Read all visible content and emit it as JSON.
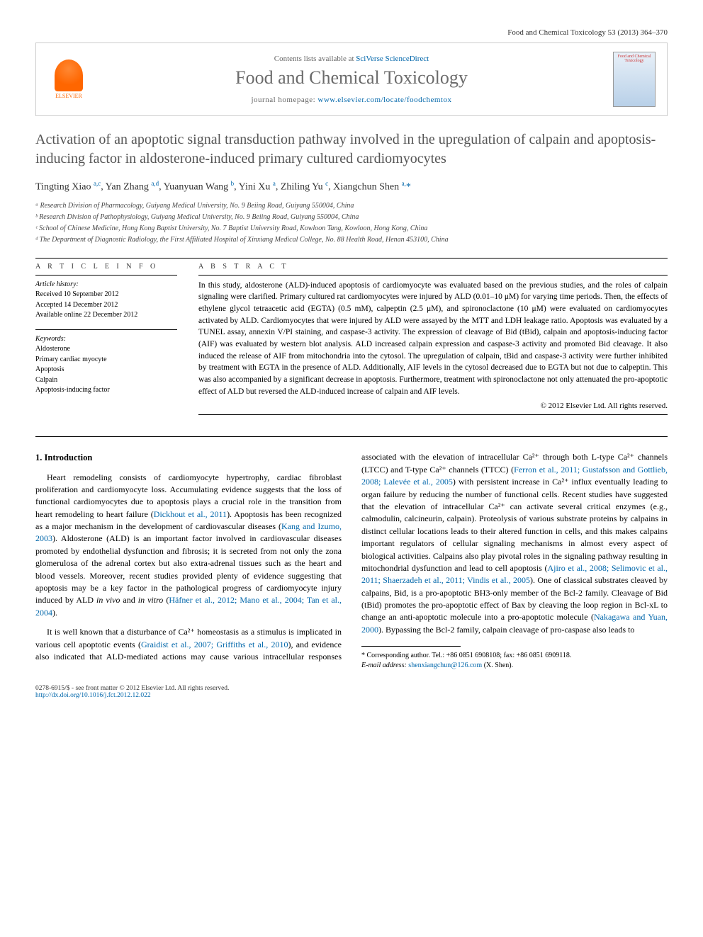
{
  "header": {
    "citation": "Food and Chemical Toxicology 53 (2013) 364–370"
  },
  "banner": {
    "elsevier_label": "ELSEVIER",
    "contents_prefix": "Contents lists available at ",
    "contents_link": "SciVerse ScienceDirect",
    "journal_name": "Food and Chemical Toxicology",
    "homepage_prefix": "journal homepage: ",
    "homepage_url": "www.elsevier.com/locate/foodchemtox",
    "cover_text": "Food and Chemical Toxicology"
  },
  "title": "Activation of an apoptotic signal transduction pathway involved in the upregulation of calpain and apoptosis-inducing factor in aldosterone-induced primary cultured cardiomyocytes",
  "authors_html": "Tingting Xiao <sup>a,c</sup>, Yan Zhang <sup>a,d</sup>, Yuanyuan Wang <sup>b</sup>, Yini Xu <sup>a</sup>, Zhiling Yu <sup>c</sup>, Xiangchun Shen <sup>a,</sup><span class='star'>*</span>",
  "affiliations": [
    "ᵃ Research Division of Pharmacology, Guiyang Medical University, No. 9 Beiing Road, Guiyang 550004, China",
    "ᵇ Research Division of Pathophysiology, Guiyang Medical University, No. 9 Beiing Road, Guiyang 550004, China",
    "ᶜ School of Chinese Medicine, Hong Kong Baptist University, No. 7 Baptist University Road, Kowloon Tang, Kowloon, Hong Kong, China",
    "ᵈ The Department of Diagnostic Radiology, the First Affiliated Hospital of Xinxiang Medical College, No. 88 Health Road, Henan 453100, China"
  ],
  "info": {
    "heading": "A R T I C L E   I N F O",
    "history_label": "Article history:",
    "history": [
      "Received 10 September 2012",
      "Accepted 14 December 2012",
      "Available online 22 December 2012"
    ],
    "keywords_label": "Keywords:",
    "keywords": [
      "Aldosterone",
      "Primary cardiac myocyte",
      "Apoptosis",
      "Calpain",
      "Apoptosis-inducing factor"
    ]
  },
  "abstract": {
    "heading": "A B S T R A C T",
    "text": "In this study, aldosterone (ALD)-induced apoptosis of cardiomyocyte was evaluated based on the previous studies, and the roles of calpain signaling were clarified. Primary cultured rat cardiomyocytes were injured by ALD (0.01–10 μM) for varying time periods. Then, the effects of ethylene glycol tetraacetic acid (EGTA) (0.5 mM), calpeptin (2.5 μM), and spironoclactone (10 μM) were evaluated on cardiomyocytes activated by ALD. Cardiomyocytes that were injured by ALD were assayed by the MTT and LDH leakage ratio. Apoptosis was evaluated by a TUNEL assay, annexin V/PI staining, and caspase-3 activity. The expression of cleavage of Bid (tBid), calpain and apoptosis-inducing factor (AIF) was evaluated by western blot analysis. ALD increased calpain expression and caspase-3 activity and promoted Bid cleavage. It also induced the release of AIF from mitochondria into the cytosol. The upregulation of calpain, tBid and caspase-3 activity were further inhibited by treatment with EGTA in the presence of ALD. Additionally, AIF levels in the cytosol decreased due to EGTA but not due to calpeptin. This was also accompanied by a significant decrease in apoptosis. Furthermore, treatment with spironoclactone not only attenuated the pro-apoptotic effect of ALD but reversed the ALD-induced increase of calpain and AIF levels.",
    "copyright": "© 2012 Elsevier Ltd. All rights reserved."
  },
  "body": {
    "section_heading": "1. Introduction",
    "p1_pre": "Heart remodeling consists of cardiomyocyte hypertrophy, cardiac fibroblast proliferation and cardiomyocyte loss. Accumulating evidence suggests that the loss of functional cardiomyocytes due to apoptosis plays a crucial role in the transition from heart remodeling to heart failure (",
    "p1_ref1": "Dickhout et al., 2011",
    "p1_mid1": "). Apoptosis has been recognized as a major mechanism in the development of cardiovascular diseases (",
    "p1_ref2": "Kang and Izumo, 2003",
    "p1_mid2": "). Aldosterone (ALD) is an important factor involved in cardiovascular diseases promoted by endothelial dysfunction and fibrosis; it is secreted from not only the zona glomerulosa of the adrenal cortex but also extra-adrenal tissues such as the heart and blood vessels. Moreover, recent studies provided plenty of evidence suggesting that apoptosis may be a key factor in the pathological progress of cardiomyocyte injury induced by ALD ",
    "p1_ref3": "in vivo",
    "p1_mid3": " and ",
    "p1_ref4": "in vitro",
    "p1_mid4": " (",
    "p1_ref5": "Häfner et al., 2012; Mano et al., 2004; Tan et al., 2004",
    "p1_end": ").",
    "p2_pre": "It is well known that a disturbance of Ca²⁺ homeostasis as a stimulus is implicated in various cell apoptotic events (",
    "p2_ref1": "Graidist et al., 2007; Griffiths et al., 2010",
    "p2_mid1": "), and evidence also indicated that ALD-mediated actions may cause various intracellular responses associated with the elevation of intracellular Ca²⁺ through both L-type Ca²⁺ channels (LTCC) and T-type Ca²⁺ channels (TTCC) (",
    "p2_ref2": "Ferron et al., 2011; Gustafsson and Gottlieb, 2008; Lalevée et al., 2005",
    "p2_mid2": ") with persistent increase in Ca²⁺ influx eventually leading to organ failure by reducing the number of functional cells. Recent studies have suggested that the elevation of intracellular Ca²⁺ can activate several critical enzymes (e.g., calmodulin, calcineurin, calpain). Proteolysis of various substrate proteins by calpains in distinct cellular locations leads to their altered function in cells, and this makes calpains important regulators of cellular signaling mechanisms in almost every aspect of biological activities. Calpains also play pivotal roles in the signaling pathway resulting in mitochondrial dysfunction and lead to cell apoptosis (",
    "p2_ref3": "Ajiro et al., 2008; Selimovic et al., 2011; Shaerzadeh et al., 2011; Vindis et al., 2005",
    "p2_mid3": "). One of classical substrates cleaved by calpains, Bid, is a pro-apoptotic BH3-only member of the Bcl-2 family. Cleavage of Bid (tBid) promotes the pro-apoptotic effect of Bax by cleaving the loop region in Bcl-xL to change an anti-apoptotic molecule into a pro-apoptotic molecule (",
    "p2_ref4": "Nakagawa and Yuan, 2000",
    "p2_end": "). Bypassing the Bcl-2 family, calpain cleavage of pro-caspase also leads to"
  },
  "footnote": {
    "corr_label": "* Corresponding author. Tel.: +86 0851 6908108; fax: +86 0851 6909118.",
    "email_label": "E-mail address:",
    "email": "shenxiangchun@126.com",
    "email_suffix": "(X. Shen)."
  },
  "footer": {
    "left1": "0278-6915/$ - see front matter © 2012 Elsevier Ltd. All rights reserved.",
    "left2": "http://dx.doi.org/10.1016/j.fct.2012.12.022"
  },
  "colors": {
    "link": "#0066aa",
    "heading_gray": "#555555",
    "text": "#000000"
  }
}
